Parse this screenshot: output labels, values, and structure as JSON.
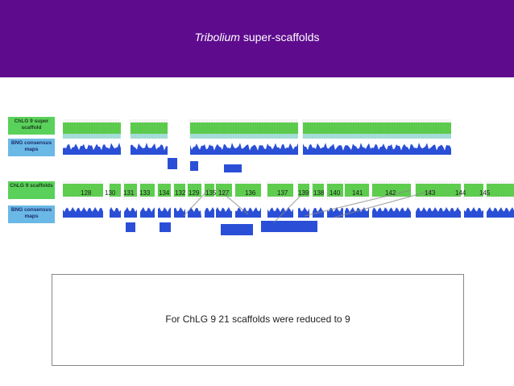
{
  "header": {
    "title_italic": "Tribolium",
    "title_rest": " super-scaffolds",
    "color": "#5e0b8e"
  },
  "labels": {
    "row1_top": "ChLG 9 super scaffold",
    "row1_bottom": "BNG consensus maps",
    "row2_top": "ChLG 9 scaffolds",
    "row2_bottom": "BNG consensus maps"
  },
  "scaffold_numbers": [
    "128",
    "130",
    "131",
    "133",
    "134",
    "132",
    "129",
    "135",
    "127",
    "136",
    "137",
    "139",
    "138",
    "140",
    "141",
    "142",
    "143",
    "144",
    "145"
  ],
  "caption": "For ChLG 9 21 scaffolds were reduced to 9",
  "colors": {
    "green_track": "#59d049",
    "blue_track": "#2a4fd6",
    "label_blue": "#6ab8e6",
    "label_green": "#5ad15a"
  }
}
